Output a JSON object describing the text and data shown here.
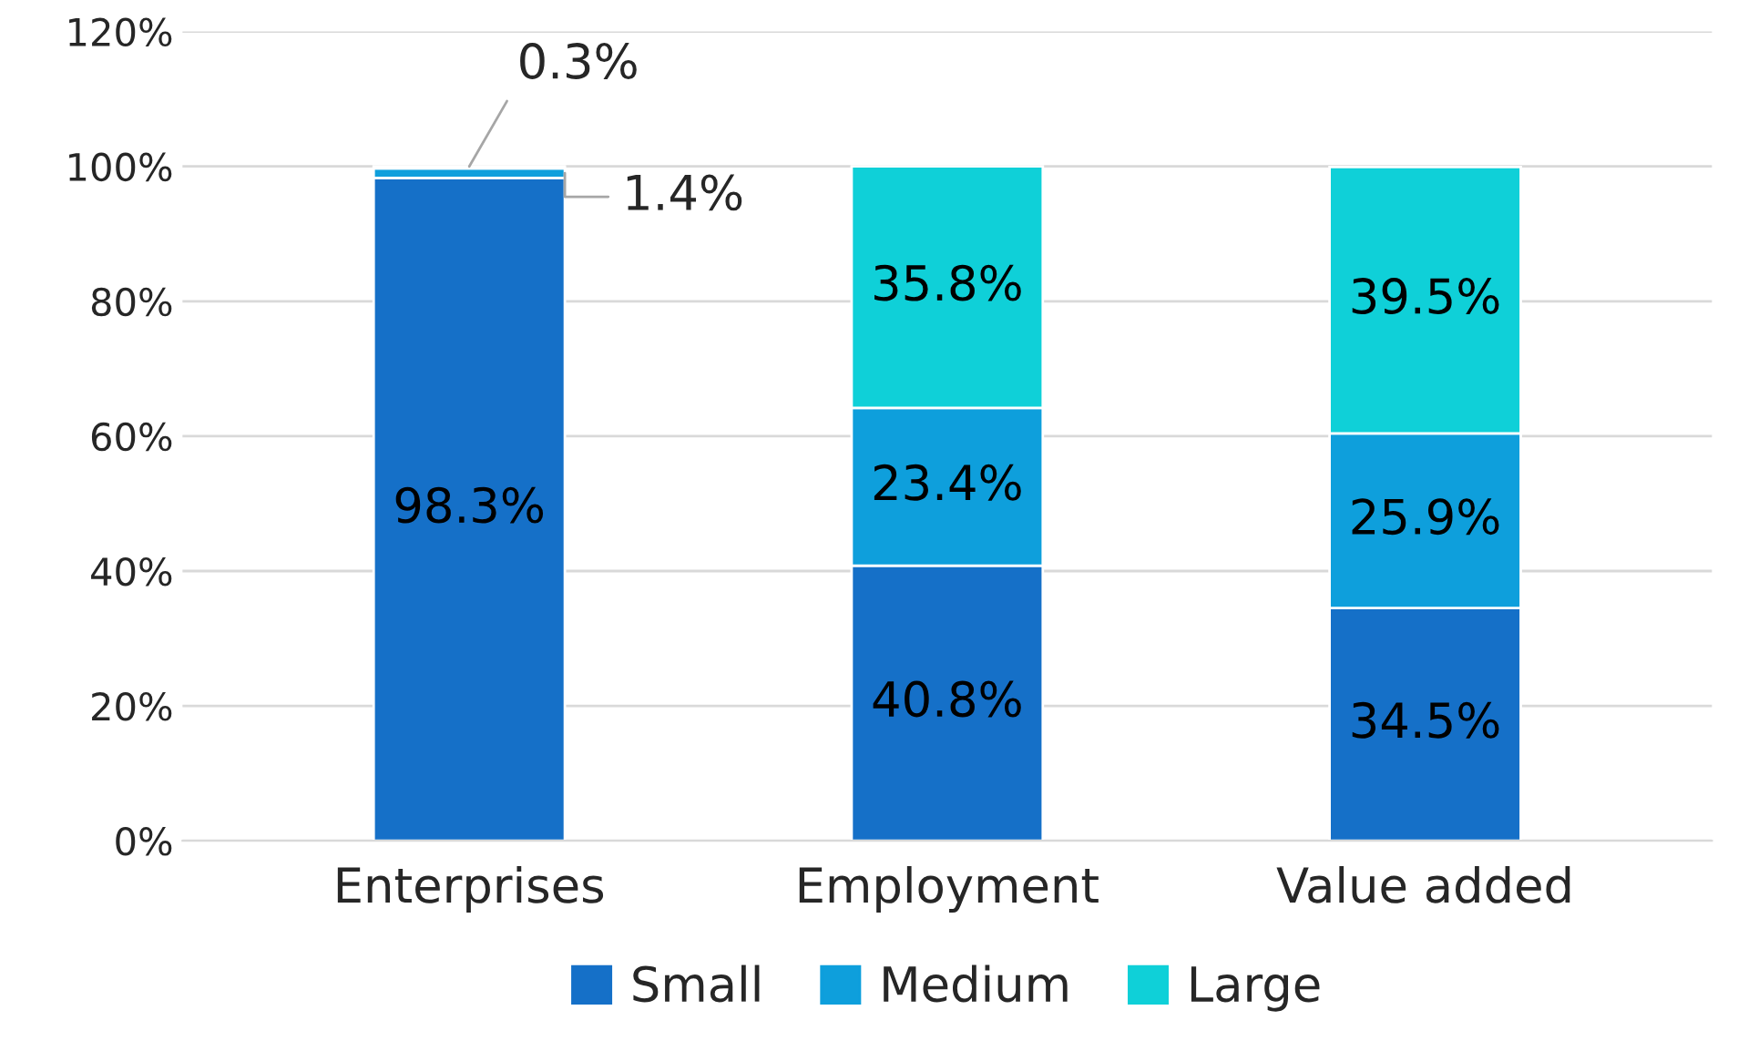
{
  "chart_data": {
    "type": "bar",
    "stacked": true,
    "categories": [
      "Enterprises",
      "Employment",
      "Value added"
    ],
    "series": [
      {
        "name": "Small",
        "color": "#1570c8",
        "values": [
          98.3,
          40.8,
          34.5
        ],
        "value_labels": [
          "98.3%",
          "40.8%",
          "34.5%"
        ]
      },
      {
        "name": "Medium",
        "color": "#0e9fdc",
        "values": [
          1.4,
          23.4,
          25.9
        ],
        "value_labels": [
          "1.4%",
          "23.4%",
          "25.9%"
        ]
      },
      {
        "name": "Large",
        "color": "#0fd0d8",
        "values": [
          0.3,
          35.8,
          39.5
        ],
        "value_labels": [
          "0.3%",
          "35.8%",
          "39.5%"
        ]
      }
    ],
    "ylim": [
      0,
      120
    ],
    "yticks": [
      {
        "value": 0,
        "label": "0%"
      },
      {
        "value": 20,
        "label": "20%"
      },
      {
        "value": 40,
        "label": "40%"
      },
      {
        "value": 60,
        "label": "60%"
      },
      {
        "value": 80,
        "label": "80%"
      },
      {
        "value": 100,
        "label": "100%"
      },
      {
        "value": 120,
        "label": "120%"
      }
    ],
    "grid": "y",
    "legend": "bottom"
  }
}
